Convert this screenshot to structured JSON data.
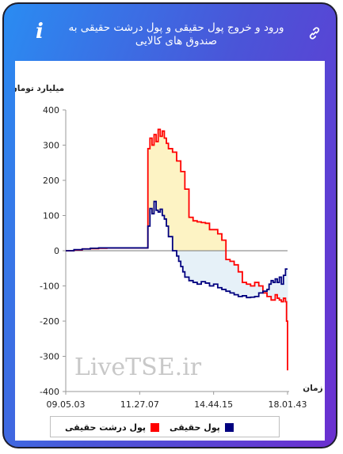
{
  "header": {
    "title": "ورود و خروج پول حقیقی و پول درشت حقیقی به صندوق های کالایی",
    "info_icon": "i",
    "link_icon": "link-icon"
  },
  "colors": {
    "real_money": "#00007f",
    "big_real_money": "#ff0000",
    "fill_above": "#fdf3c4",
    "fill_below": "#e6f1f8"
  },
  "chart_data": {
    "type": "line",
    "title": "",
    "ylabel": "میلیارد تومان",
    "xlabel": "زمان",
    "ylim": [
      -400,
      400
    ],
    "yticks": [
      400,
      300,
      200,
      100,
      0,
      -100,
      -200,
      -300,
      -400
    ],
    "ytick_labels": [
      "400",
      "300",
      "200",
      "100",
      "0",
      "-100",
      "-200",
      "-300",
      "-400"
    ],
    "xticks": [
      0,
      36,
      72,
      108
    ],
    "xtick_labels": [
      "09.05.03",
      "11.27.07",
      "14.44.15",
      "18.01.43"
    ],
    "grid": false,
    "legend_position": "bottom",
    "watermark": "LiveTSE.ir",
    "series": [
      {
        "name": "پول حقیقی",
        "x": [
          0,
          4,
          8,
          12,
          16,
          20,
          24,
          28,
          32,
          36,
          39,
          40,
          41,
          42,
          43,
          44,
          45,
          46,
          47,
          48,
          49,
          50,
          52,
          54,
          55,
          56,
          57,
          58,
          60,
          62,
          64,
          66,
          68,
          70,
          72,
          74,
          76,
          78,
          80,
          82,
          84,
          86,
          88,
          90,
          92,
          94,
          96,
          98,
          99,
          100,
          101,
          102,
          103,
          104,
          105,
          106,
          107,
          108
        ],
        "y": [
          0,
          3,
          5,
          7,
          8,
          8,
          8,
          8,
          8,
          8,
          8,
          70,
          120,
          105,
          140,
          115,
          110,
          118,
          100,
          90,
          70,
          40,
          0,
          -15,
          -30,
          -45,
          -60,
          -75,
          -85,
          -90,
          -95,
          -88,
          -92,
          -100,
          -95,
          -105,
          -110,
          -115,
          -120,
          -125,
          -130,
          -128,
          -133,
          -132,
          -130,
          -120,
          -115,
          -110,
          -95,
          -85,
          -90,
          -80,
          -90,
          -75,
          -95,
          -70,
          -52,
          -52
        ]
      },
      {
        "name": "پول درشت حقیقی",
        "x": [
          0,
          4,
          8,
          12,
          16,
          20,
          24,
          28,
          32,
          36,
          39,
          40,
          41,
          42,
          43,
          44,
          45,
          46,
          47,
          48,
          49,
          50,
          52,
          54,
          56,
          58,
          60,
          62,
          64,
          66,
          68,
          70,
          72,
          74,
          76,
          78,
          80,
          82,
          84,
          86,
          88,
          90,
          92,
          94,
          96,
          98,
          100,
          102,
          103,
          104,
          105,
          106,
          107,
          107.5,
          108
        ],
        "y": [
          0,
          2,
          5,
          6,
          7,
          8,
          8,
          8,
          8,
          8,
          8,
          290,
          320,
          300,
          330,
          310,
          345,
          325,
          340,
          320,
          305,
          290,
          280,
          255,
          225,
          175,
          95,
          85,
          82,
          80,
          78,
          60,
          60,
          48,
          30,
          -25,
          -30,
          -40,
          -60,
          -90,
          -95,
          -100,
          -90,
          -100,
          -120,
          -130,
          -140,
          -125,
          -135,
          -140,
          -145,
          -135,
          -145,
          -200,
          -340
        ]
      }
    ]
  }
}
